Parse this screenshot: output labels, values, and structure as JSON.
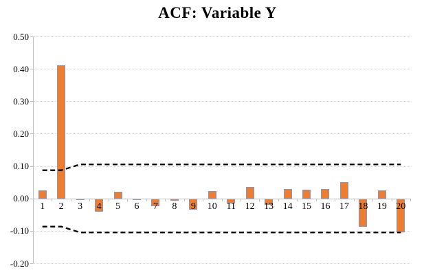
{
  "chart_data": {
    "type": "bar",
    "title": "ACF: Variable Y",
    "categories": [
      "1",
      "2",
      "3",
      "4",
      "5",
      "6",
      "7",
      "8",
      "9",
      "10",
      "11",
      "12",
      "13",
      "14",
      "15",
      "16",
      "17",
      "18",
      "19",
      "20"
    ],
    "values": [
      0.025,
      0.41,
      -0.005,
      -0.04,
      0.02,
      -0.005,
      -0.025,
      -0.008,
      -0.035,
      0.022,
      -0.015,
      0.035,
      -0.02,
      0.03,
      0.027,
      0.03,
      0.05,
      -0.088,
      0.025,
      -0.105
    ],
    "upper_band": [
      0.087,
      0.087,
      0.105,
      0.105,
      0.105,
      0.105,
      0.105,
      0.105,
      0.105,
      0.105,
      0.105,
      0.105,
      0.105,
      0.105,
      0.105,
      0.105,
      0.105,
      0.105,
      0.105,
      0.105
    ],
    "lower_band": [
      -0.087,
      -0.087,
      -0.105,
      -0.105,
      -0.105,
      -0.105,
      -0.105,
      -0.105,
      -0.105,
      -0.105,
      -0.105,
      -0.105,
      -0.105,
      -0.105,
      -0.105,
      -0.105,
      -0.105,
      -0.105,
      -0.105,
      -0.105
    ],
    "xlabel": "",
    "ylabel": "",
    "ylim": [
      -0.2,
      0.5
    ],
    "ytick_step": 0.1,
    "ytick_labels": [
      "0.50",
      "0.40",
      "0.30",
      "0.20",
      "0.10",
      "0.00",
      "-0.10",
      "-0.20"
    ],
    "ytick_values": [
      0.5,
      0.4,
      0.3,
      0.2,
      0.1,
      0.0,
      -0.1,
      -0.2
    ],
    "grid": "horizontal-dotted",
    "legend": "none",
    "colors": {
      "bar_fill": "#ED7D31",
      "bar_border": "#8496C4",
      "confidence_band": "#000000",
      "axis_line": "#BFBFBF",
      "gridline": "#D9D9D9",
      "text": "#000000",
      "background": "#FFFFFF"
    }
  }
}
